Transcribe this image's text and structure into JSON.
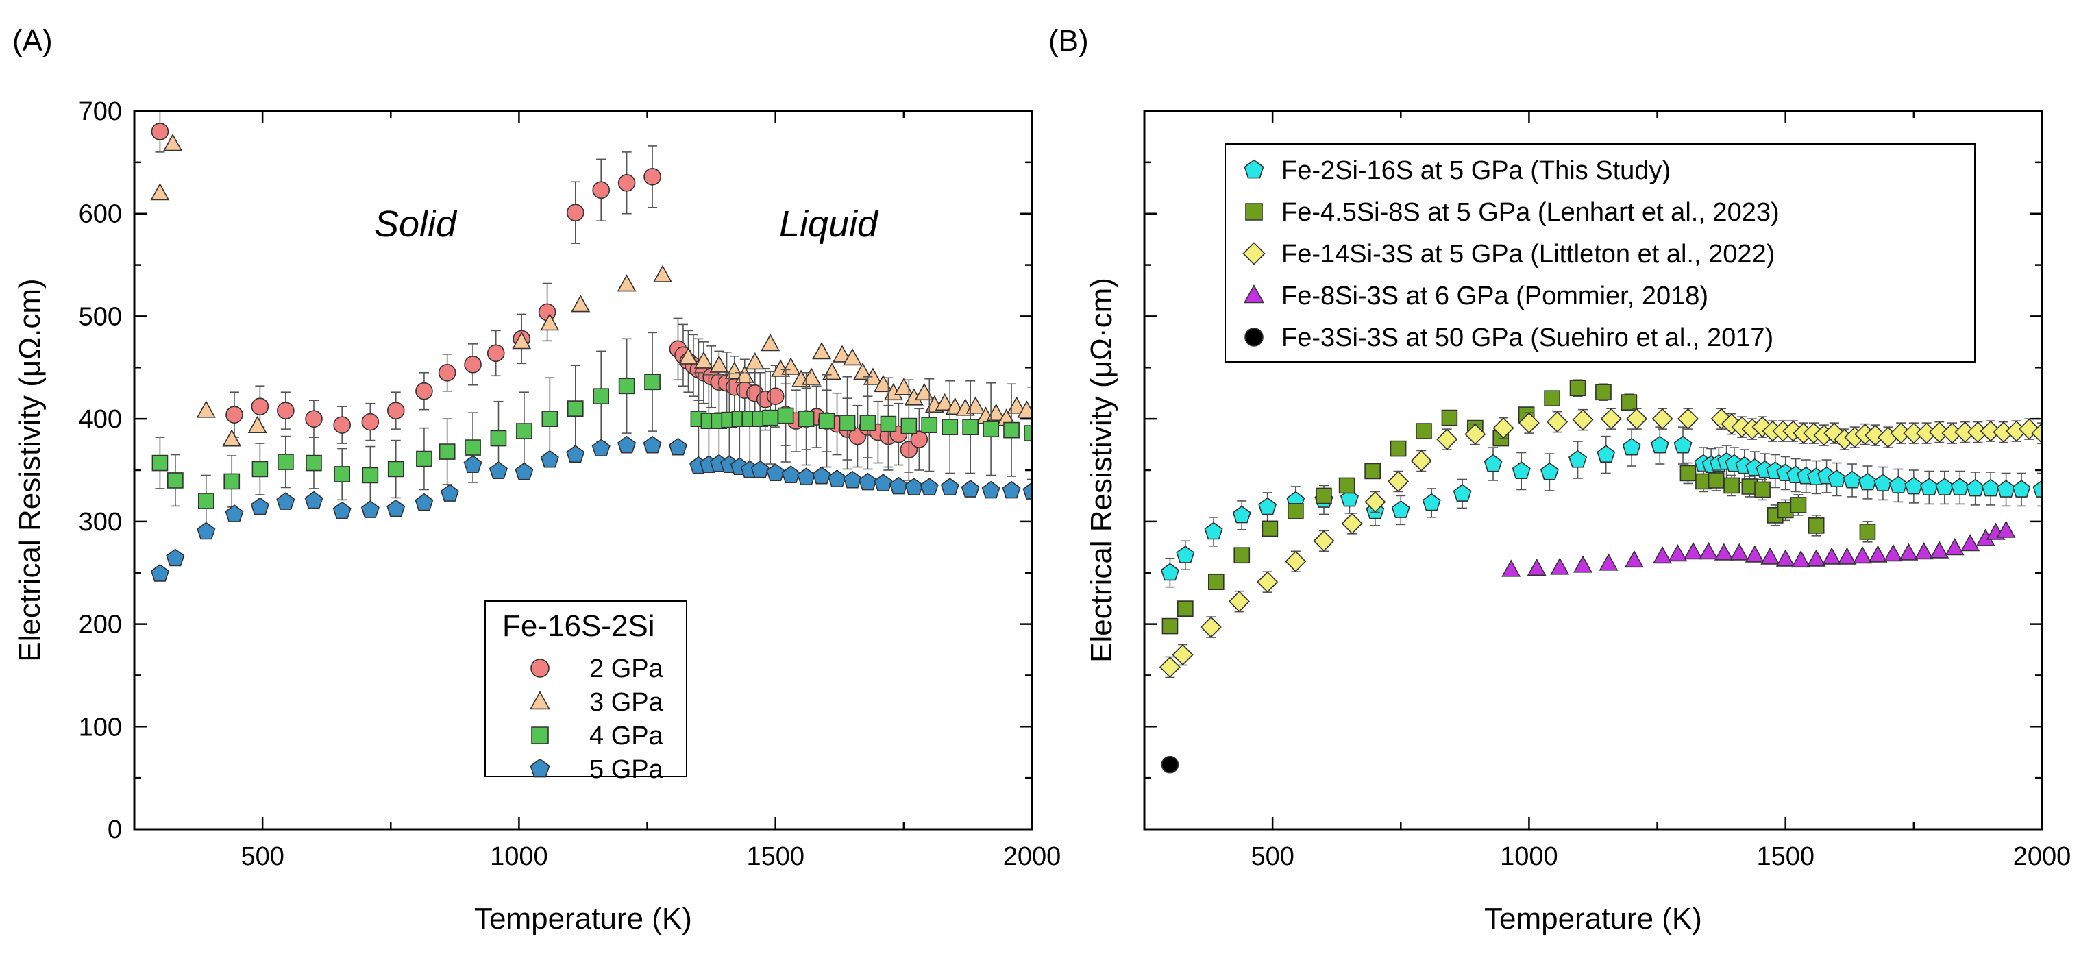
{
  "figure": {
    "panels": [
      "(A)",
      "(B)"
    ]
  },
  "chart_data": [
    {
      "panel": "(A)",
      "type": "scatter",
      "xlabel": "Temperature (K)",
      "ylabel": "Electrical Resistivity (μΩ.cm)",
      "xlim": [
        250,
        2000
      ],
      "ylim": [
        0,
        700
      ],
      "xticks": [
        500,
        1000,
        1500,
        2000
      ],
      "yticks": [
        0,
        100,
        200,
        300,
        400,
        500,
        600,
        700
      ],
      "annotations": [
        {
          "text": "Solid",
          "x": 800,
          "y": 585
        },
        {
          "text": "Liquid",
          "x": 1605,
          "y": 585
        }
      ],
      "legend": {
        "title": "Fe-16S-2Si",
        "position": "bottom-center"
      },
      "series": [
        {
          "name": "2 GPa",
          "marker": "circle",
          "color": "#f08080",
          "x": [
            300,
            445,
            495,
            545,
            600,
            655,
            710,
            760,
            815,
            860,
            910,
            955,
            1005,
            1055,
            1110,
            1160,
            1210,
            1260,
            1310,
            1320,
            1330,
            1340,
            1350,
            1360,
            1375,
            1390,
            1405,
            1420,
            1440,
            1460,
            1480,
            1500,
            1520,
            1540,
            1560,
            1580,
            1600,
            1620,
            1640,
            1660,
            1680,
            1700,
            1720,
            1740,
            1760,
            1780
          ],
          "y": [
            680,
            404,
            412,
            408,
            400,
            394,
            397,
            408,
            427,
            445,
            453,
            464,
            478,
            504,
            601,
            623,
            630,
            636,
            468,
            462,
            456,
            452,
            448,
            445,
            441,
            436,
            435,
            431,
            428,
            425,
            419,
            422,
            404,
            398,
            400,
            402,
            398,
            395,
            390,
            383,
            392,
            387,
            383,
            385,
            370,
            380
          ],
          "err": [
            20,
            22,
            20,
            18,
            18,
            18,
            18,
            18,
            18,
            18,
            20,
            22,
            24,
            28,
            30,
            30,
            30,
            30,
            30,
            30,
            30,
            30,
            30,
            30,
            30,
            30,
            30,
            30,
            30,
            30,
            30,
            30,
            30,
            30,
            30,
            30,
            30,
            30,
            30,
            30,
            30,
            30,
            30,
            30,
            30,
            30
          ]
        },
        {
          "name": "3 GPa",
          "marker": "triangle",
          "color": "#f7c99b",
          "x": [
            300,
            325,
            390,
            440,
            490,
            1005,
            1060,
            1120,
            1210,
            1280,
            1330,
            1360,
            1390,
            1420,
            1440,
            1460,
            1490,
            1510,
            1530,
            1550,
            1570,
            1590,
            1610,
            1630,
            1650,
            1670,
            1690,
            1710,
            1730,
            1750,
            1770,
            1790,
            1810,
            1830,
            1850,
            1870,
            1890,
            1910,
            1930,
            1950,
            1970,
            1990
          ],
          "y": [
            620,
            668,
            408,
            380,
            393,
            475,
            493,
            511,
            531,
            540,
            460,
            456,
            452,
            446,
            442,
            455,
            473,
            448,
            450,
            438,
            440,
            465,
            445,
            462,
            459,
            445,
            440,
            433,
            425,
            430,
            420,
            425,
            413,
            415,
            411,
            410,
            412,
            402,
            405,
            400,
            412,
            408
          ],
          "err": []
        },
        {
          "name": "4 GPa",
          "marker": "square",
          "color": "#55c455",
          "x": [
            300,
            330,
            390,
            440,
            495,
            545,
            600,
            655,
            710,
            760,
            815,
            860,
            910,
            960,
            1010,
            1060,
            1110,
            1160,
            1210,
            1260,
            1350,
            1370,
            1390,
            1410,
            1430,
            1450,
            1470,
            1490,
            1520,
            1560,
            1600,
            1640,
            1680,
            1720,
            1760,
            1800,
            1840,
            1880,
            1920,
            1960,
            2000
          ],
          "y": [
            357,
            340,
            320,
            339,
            351,
            358,
            357,
            346,
            345,
            351,
            361,
            368,
            372,
            381,
            388,
            400,
            410,
            422,
            432,
            436,
            400,
            398,
            398,
            399,
            400,
            400,
            400,
            401,
            403,
            400,
            398,
            396,
            396,
            395,
            393,
            394,
            392,
            392,
            390,
            389,
            386
          ],
          "err": [
            25,
            25,
            25,
            25,
            25,
            25,
            25,
            25,
            28,
            28,
            30,
            32,
            34,
            36,
            38,
            40,
            42,
            44,
            46,
            48,
            45,
            45,
            45,
            45,
            45,
            45,
            45,
            45,
            45,
            45,
            45,
            45,
            45,
            45,
            45,
            45,
            45,
            45,
            45,
            45,
            45
          ]
        },
        {
          "name": "5 GPa",
          "marker": "pentagon",
          "color": "#3a8cc4",
          "x": [
            300,
            330,
            390,
            445,
            495,
            545,
            600,
            655,
            710,
            760,
            815,
            865,
            910,
            960,
            1010,
            1060,
            1110,
            1160,
            1210,
            1260,
            1310,
            1350,
            1370,
            1390,
            1410,
            1430,
            1450,
            1470,
            1500,
            1530,
            1560,
            1590,
            1620,
            1650,
            1680,
            1710,
            1740,
            1770,
            1800,
            1840,
            1880,
            1920,
            1960,
            2000
          ],
          "y": [
            249,
            264,
            290,
            307,
            314,
            319,
            320,
            310,
            311,
            312,
            318,
            327,
            355,
            349,
            348,
            360,
            365,
            371,
            374,
            374,
            372,
            354,
            355,
            356,
            355,
            353,
            350,
            350,
            347,
            345,
            343,
            344,
            341,
            340,
            338,
            337,
            334,
            333,
            333,
            333,
            331,
            330,
            330,
            329
          ],
          "err": []
        }
      ]
    },
    {
      "panel": "(B)",
      "type": "scatter",
      "xlabel": "Temperature (K)",
      "ylabel": "Electrical Resistivity (μΩ·cm)",
      "xlim": [
        250,
        2000
      ],
      "ylim": [
        0,
        700
      ],
      "xticks": [
        500,
        1000,
        1500,
        2000
      ],
      "yticks": [],
      "legend": {
        "position": "top-left"
      },
      "series": [
        {
          "name": "Fe-2Si-16S at 5 GPa (This Study)",
          "marker": "pentagon",
          "color": "#29e6e6",
          "x": [
            300,
            330,
            385,
            440,
            490,
            545,
            600,
            650,
            700,
            750,
            810,
            870,
            930,
            985,
            1040,
            1095,
            1150,
            1200,
            1255,
            1300,
            1340,
            1355,
            1370,
            1385,
            1400,
            1420,
            1440,
            1460,
            1480,
            1500,
            1520,
            1540,
            1560,
            1580,
            1600,
            1630,
            1660,
            1690,
            1720,
            1750,
            1780,
            1810,
            1840,
            1870,
            1900,
            1930,
            1960,
            2000
          ],
          "y": [
            250,
            267,
            290,
            306,
            314,
            320,
            321,
            322,
            310,
            311,
            318,
            327,
            356,
            349,
            348,
            360,
            365,
            372,
            374,
            374,
            356,
            355,
            356,
            358,
            356,
            354,
            352,
            350,
            349,
            347,
            345,
            344,
            343,
            344,
            341,
            340,
            338,
            337,
            335,
            334,
            333,
            333,
            333,
            332,
            332,
            331,
            331,
            331
          ],
          "err": [
            14,
            14,
            14,
            14,
            14,
            14,
            14,
            14,
            14,
            14,
            14,
            14,
            16,
            18,
            18,
            18,
            18,
            18,
            18,
            18,
            16,
            16,
            16,
            16,
            16,
            16,
            16,
            16,
            16,
            16,
            16,
            16,
            16,
            16,
            16,
            16,
            16,
            16,
            16,
            16,
            16,
            16,
            16,
            16,
            16,
            16,
            16,
            16
          ]
        },
        {
          "name": "Fe-4.5Si-8S at 5 GPa (Lenhart et al., 2023)",
          "marker": "square",
          "color": "#6e9e1e",
          "x": [
            300,
            330,
            390,
            440,
            495,
            545,
            600,
            645,
            695,
            745,
            795,
            845,
            895,
            945,
            995,
            1045,
            1095,
            1145,
            1195,
            1310,
            1340,
            1365,
            1395,
            1430,
            1455,
            1480,
            1500,
            1525,
            1560,
            1660
          ],
          "y": [
            198,
            215,
            241,
            267,
            293,
            310,
            325,
            335,
            349,
            371,
            388,
            401,
            391,
            381,
            404,
            420,
            430,
            426,
            416,
            347,
            339,
            340,
            335,
            334,
            331,
            306,
            311,
            316,
            296,
            290
          ],
          "err": [
            6,
            6,
            6,
            6,
            6,
            6,
            6,
            6,
            6,
            6,
            6,
            6,
            6,
            6,
            6,
            6,
            8,
            8,
            8,
            10,
            10,
            10,
            10,
            10,
            10,
            10,
            10,
            10,
            10,
            10
          ]
        },
        {
          "name": "Fe-14Si-3S at 5 GPa (Littleton et al., 2022)",
          "marker": "diamond",
          "color": "#f2f07a",
          "x": [
            300,
            325,
            380,
            435,
            490,
            545,
            600,
            655,
            700,
            745,
            790,
            840,
            895,
            950,
            1000,
            1055,
            1105,
            1160,
            1210,
            1260,
            1310,
            1375,
            1395,
            1415,
            1435,
            1455,
            1475,
            1495,
            1515,
            1535,
            1555,
            1575,
            1595,
            1615,
            1635,
            1655,
            1675,
            1700,
            1725,
            1750,
            1775,
            1800,
            1825,
            1850,
            1875,
            1900,
            1925,
            1950,
            1975,
            2000
          ],
          "y": [
            158,
            170,
            197,
            222,
            241,
            261,
            281,
            298,
            319,
            339,
            359,
            380,
            385,
            391,
            396,
            397,
            399,
            400,
            400,
            400,
            400,
            400,
            395,
            392,
            390,
            392,
            388,
            388,
            388,
            386,
            386,
            384,
            386,
            380,
            382,
            385,
            384,
            382,
            386,
            386,
            386,
            387,
            386,
            387,
            387,
            388,
            387,
            388,
            390,
            386
          ],
          "err": [
            10,
            10,
            10,
            10,
            10,
            10,
            10,
            10,
            10,
            10,
            10,
            10,
            10,
            10,
            10,
            10,
            10,
            10,
            10,
            10,
            10,
            10,
            10,
            10,
            10,
            10,
            10,
            10,
            10,
            10,
            10,
            10,
            10,
            10,
            10,
            10,
            10,
            10,
            10,
            10,
            10,
            10,
            10,
            10,
            10,
            10,
            10,
            10,
            10,
            10
          ]
        },
        {
          "name": "Fe-8Si-3S at 6 GPa (Pommier, 2018)",
          "marker": "triangle",
          "color": "#c233e0",
          "x": [
            965,
            1015,
            1060,
            1105,
            1155,
            1205,
            1260,
            1290,
            1320,
            1350,
            1380,
            1410,
            1440,
            1470,
            1500,
            1530,
            1560,
            1590,
            1620,
            1650,
            1680,
            1710,
            1740,
            1770,
            1800,
            1830,
            1860,
            1890,
            1910,
            1930
          ],
          "y": [
            253,
            254,
            255,
            257,
            259,
            262,
            266,
            268,
            270,
            270,
            269,
            269,
            267,
            265,
            263,
            262,
            263,
            265,
            265,
            266,
            267,
            268,
            269,
            270,
            271,
            274,
            278,
            283,
            289,
            291
          ],
          "err": []
        },
        {
          "name": "Fe-3Si-3S at 50 GPa (Suehiro et al., 2017)",
          "marker": "circle",
          "color": "#000000",
          "x": [
            300
          ],
          "y": [
            63
          ],
          "err": []
        }
      ]
    }
  ]
}
